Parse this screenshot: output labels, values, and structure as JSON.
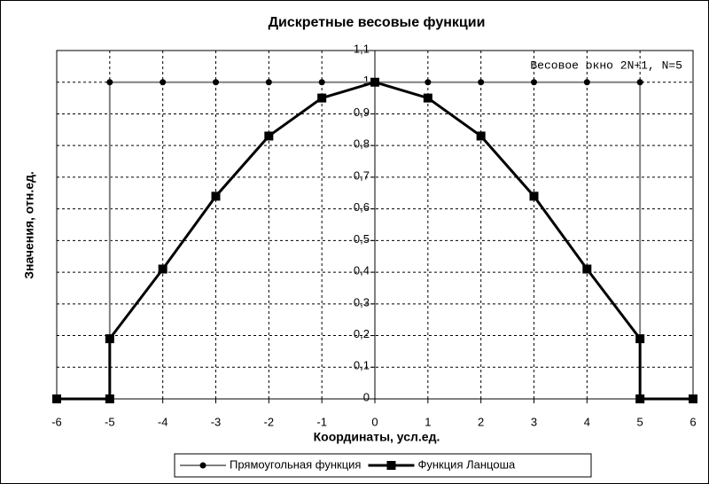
{
  "chart_data": {
    "type": "line",
    "title": "Дискретные весовые функции",
    "x_label": "Координаты, усл.ед.",
    "y_label": "Значения, отн.ед.",
    "annotation": "Весовое окно 2N+1, N=5",
    "x": [
      -6,
      -5,
      -5,
      -4,
      -3,
      -2,
      -1,
      0,
      1,
      2,
      3,
      4,
      5,
      5,
      6
    ],
    "series": [
      {
        "name": "Прямоугольная функция",
        "color": "#808080",
        "marker": "circle",
        "values": [
          0,
          0,
          1,
          1,
          1,
          1,
          1,
          1,
          1,
          1,
          1,
          1,
          1,
          0,
          0
        ]
      },
      {
        "name": "Функция Ланцоша",
        "color": "#000000",
        "marker": "square",
        "values": [
          0,
          0,
          0.19,
          0.41,
          0.64,
          0.83,
          0.95,
          1,
          0.95,
          0.83,
          0.64,
          0.41,
          0.19,
          0,
          0
        ]
      }
    ],
    "xlim": [
      -6,
      6
    ],
    "xticks": [
      -6,
      -5,
      -4,
      -3,
      -2,
      -1,
      0,
      1,
      2,
      3,
      4,
      5,
      6
    ],
    "ylim": [
      0,
      1.1
    ],
    "yticks": [
      0,
      {
        "value": 0.1,
        "label": "0,1"
      },
      {
        "value": 0.2,
        "label": "0,2"
      },
      {
        "value": 0.3,
        "label": "0,3"
      },
      {
        "value": 0.4,
        "label": "0,4"
      },
      {
        "value": 0.5,
        "label": "0,5"
      },
      {
        "value": 0.6,
        "label": "0,6"
      },
      {
        "value": 0.7,
        "label": "0,7"
      },
      {
        "value": 0.8,
        "label": "0,8"
      },
      {
        "value": 0.9,
        "label": "0,9"
      },
      1,
      {
        "value": 1.1,
        "label": "1,1"
      }
    ],
    "grid": true,
    "legend": "bottom"
  }
}
